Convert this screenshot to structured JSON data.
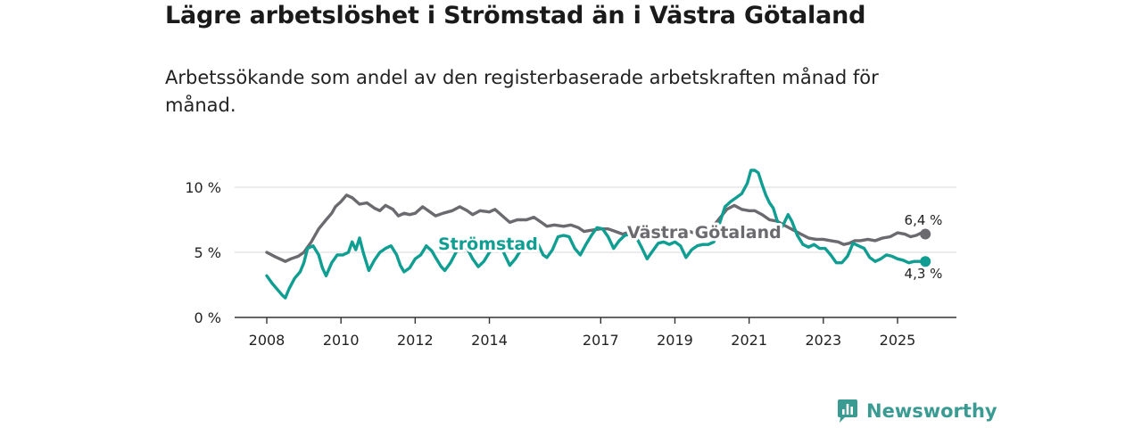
{
  "title": "Lägre arbetslöshet i Strömstad än i Västra Götaland",
  "subtitle": "Arbetssökande som andel av den registerbaserade arbetskraften månad för månad.",
  "brand": {
    "name": "Newsworthy"
  },
  "colors": {
    "stromstad": "#0f9e91",
    "vastra": "#6b6a6f",
    "grid": "#d9d9d9",
    "axis": "#333333"
  },
  "chart_data": {
    "type": "line",
    "title": "Lägre arbetslöshet i Strömstad än i Västra Götaland",
    "ylabel": "",
    "xlabel": "",
    "ylim": [
      0,
      10
    ],
    "xlim": [
      2008,
      2026.3
    ],
    "y_ticks": [
      0,
      5,
      10
    ],
    "y_tick_labels": [
      "0 %",
      "5 %",
      "10 %"
    ],
    "x_ticks": [
      2008,
      2010,
      2012,
      2014,
      2017,
      2019,
      2021,
      2023,
      2025
    ],
    "x_tick_labels": [
      "2008",
      "2010",
      "2012",
      "2014",
      "2017",
      "2019",
      "2021",
      "2023",
      "2025"
    ],
    "series": [
      {
        "name": "Västra Götaland",
        "label": "Västra Götaland",
        "end_label": "6,4 %",
        "points": [
          [
            2008.0,
            5.0
          ],
          [
            2008.2,
            4.7
          ],
          [
            2008.35,
            4.5
          ],
          [
            2008.5,
            4.3
          ],
          [
            2008.65,
            4.5
          ],
          [
            2008.85,
            4.7
          ],
          [
            2009.0,
            5.0
          ],
          [
            2009.2,
            5.8
          ],
          [
            2009.4,
            6.8
          ],
          [
            2009.6,
            7.5
          ],
          [
            2009.75,
            8.0
          ],
          [
            2009.85,
            8.5
          ],
          [
            2010.0,
            8.9
          ],
          [
            2010.15,
            9.4
          ],
          [
            2010.3,
            9.2
          ],
          [
            2010.5,
            8.7
          ],
          [
            2010.7,
            8.8
          ],
          [
            2010.9,
            8.4
          ],
          [
            2011.05,
            8.2
          ],
          [
            2011.2,
            8.6
          ],
          [
            2011.4,
            8.3
          ],
          [
            2011.55,
            7.8
          ],
          [
            2011.7,
            8.0
          ],
          [
            2011.85,
            7.9
          ],
          [
            2012.0,
            8.0
          ],
          [
            2012.2,
            8.5
          ],
          [
            2012.4,
            8.1
          ],
          [
            2012.55,
            7.8
          ],
          [
            2012.75,
            8.0
          ],
          [
            2013.0,
            8.2
          ],
          [
            2013.2,
            8.5
          ],
          [
            2013.4,
            8.2
          ],
          [
            2013.55,
            7.9
          ],
          [
            2013.75,
            8.2
          ],
          [
            2014.0,
            8.1
          ],
          [
            2014.15,
            8.3
          ],
          [
            2014.35,
            7.8
          ],
          [
            2014.55,
            7.3
          ],
          [
            2014.75,
            7.5
          ],
          [
            2015.0,
            7.5
          ],
          [
            2015.2,
            7.7
          ],
          [
            2015.4,
            7.3
          ],
          [
            2015.55,
            7.0
          ],
          [
            2015.75,
            7.1
          ],
          [
            2016.0,
            7.0
          ],
          [
            2016.2,
            7.1
          ],
          [
            2016.4,
            6.9
          ],
          [
            2016.55,
            6.6
          ],
          [
            2016.75,
            6.7
          ],
          [
            2017.0,
            6.8
          ],
          [
            2017.2,
            6.8
          ],
          [
            2017.4,
            6.6
          ],
          [
            2017.6,
            6.4
          ],
          [
            2017.8,
            6.6
          ],
          [
            2018.0,
            6.5
          ],
          [
            2018.2,
            6.6
          ],
          [
            2018.4,
            6.5
          ],
          [
            2018.6,
            6.3
          ],
          [
            2018.8,
            6.4
          ],
          [
            2019.0,
            6.5
          ],
          [
            2019.2,
            6.6
          ],
          [
            2019.4,
            6.6
          ],
          [
            2019.6,
            6.4
          ],
          [
            2019.8,
            6.6
          ],
          [
            2020.0,
            6.9
          ],
          [
            2020.2,
            7.6
          ],
          [
            2020.4,
            8.3
          ],
          [
            2020.6,
            8.6
          ],
          [
            2020.8,
            8.3
          ],
          [
            2021.0,
            8.2
          ],
          [
            2021.15,
            8.2
          ],
          [
            2021.35,
            7.9
          ],
          [
            2021.55,
            7.5
          ],
          [
            2021.75,
            7.4
          ],
          [
            2022.0,
            7.0
          ],
          [
            2022.2,
            6.7
          ],
          [
            2022.4,
            6.4
          ],
          [
            2022.6,
            6.1
          ],
          [
            2022.8,
            6.0
          ],
          [
            2023.0,
            6.0
          ],
          [
            2023.2,
            5.9
          ],
          [
            2023.4,
            5.8
          ],
          [
            2023.55,
            5.6
          ],
          [
            2023.7,
            5.7
          ],
          [
            2023.85,
            5.9
          ],
          [
            2024.0,
            5.9
          ],
          [
            2024.2,
            6.0
          ],
          [
            2024.4,
            5.9
          ],
          [
            2024.6,
            6.1
          ],
          [
            2024.8,
            6.2
          ],
          [
            2025.0,
            6.5
          ],
          [
            2025.2,
            6.4
          ],
          [
            2025.35,
            6.2
          ],
          [
            2025.5,
            6.3
          ],
          [
            2025.65,
            6.5
          ],
          [
            2025.75,
            6.4
          ]
        ]
      },
      {
        "name": "Strömstad",
        "label": "Strömstad",
        "end_label": "4,3 %",
        "points": [
          [
            2008.0,
            3.2
          ],
          [
            2008.15,
            2.6
          ],
          [
            2008.3,
            2.1
          ],
          [
            2008.42,
            1.7
          ],
          [
            2008.5,
            1.5
          ],
          [
            2008.6,
            2.2
          ],
          [
            2008.75,
            3.0
          ],
          [
            2008.9,
            3.5
          ],
          [
            2009.0,
            4.2
          ],
          [
            2009.1,
            5.3
          ],
          [
            2009.25,
            5.5
          ],
          [
            2009.4,
            4.8
          ],
          [
            2009.5,
            3.8
          ],
          [
            2009.6,
            3.2
          ],
          [
            2009.75,
            4.2
          ],
          [
            2009.9,
            4.8
          ],
          [
            2010.05,
            4.8
          ],
          [
            2010.2,
            5.0
          ],
          [
            2010.3,
            5.8
          ],
          [
            2010.4,
            5.2
          ],
          [
            2010.5,
            6.1
          ],
          [
            2010.6,
            5.0
          ],
          [
            2010.75,
            3.6
          ],
          [
            2010.9,
            4.4
          ],
          [
            2011.05,
            5.0
          ],
          [
            2011.2,
            5.3
          ],
          [
            2011.35,
            5.5
          ],
          [
            2011.5,
            4.8
          ],
          [
            2011.6,
            4.0
          ],
          [
            2011.7,
            3.5
          ],
          [
            2011.85,
            3.8
          ],
          [
            2012.0,
            4.5
          ],
          [
            2012.15,
            4.8
          ],
          [
            2012.3,
            5.5
          ],
          [
            2012.45,
            5.1
          ],
          [
            2012.55,
            4.6
          ],
          [
            2012.7,
            3.9
          ],
          [
            2012.8,
            3.6
          ],
          [
            2012.95,
            4.2
          ],
          [
            2013.1,
            5.0
          ],
          [
            2013.25,
            5.4
          ],
          [
            2013.4,
            5.3
          ],
          [
            2013.55,
            4.5
          ],
          [
            2013.7,
            3.9
          ],
          [
            2013.85,
            4.3
          ],
          [
            2014.0,
            5.0
          ],
          [
            2014.15,
            5.4
          ],
          [
            2014.3,
            5.5
          ],
          [
            2014.45,
            4.6
          ],
          [
            2014.55,
            4.0
          ],
          [
            2014.7,
            4.5
          ],
          [
            2014.85,
            5.2
          ],
          [
            2015.0,
            5.4
          ],
          [
            2015.15,
            5.6
          ],
          [
            2015.3,
            5.7
          ],
          [
            2015.45,
            4.8
          ],
          [
            2015.55,
            4.6
          ],
          [
            2015.7,
            5.2
          ],
          [
            2015.85,
            6.2
          ],
          [
            2016.0,
            6.3
          ],
          [
            2016.15,
            6.2
          ],
          [
            2016.3,
            5.3
          ],
          [
            2016.45,
            4.8
          ],
          [
            2016.6,
            5.6
          ],
          [
            2016.75,
            6.3
          ],
          [
            2016.9,
            6.9
          ],
          [
            2017.05,
            6.8
          ],
          [
            2017.2,
            6.2
          ],
          [
            2017.35,
            5.3
          ],
          [
            2017.5,
            5.9
          ],
          [
            2017.65,
            6.3
          ],
          [
            2017.8,
            6.4
          ],
          [
            2017.95,
            6.2
          ],
          [
            2018.1,
            5.4
          ],
          [
            2018.25,
            4.5
          ],
          [
            2018.4,
            5.1
          ],
          [
            2018.55,
            5.7
          ],
          [
            2018.7,
            5.8
          ],
          [
            2018.85,
            5.6
          ],
          [
            2019.0,
            5.8
          ],
          [
            2019.15,
            5.5
          ],
          [
            2019.3,
            4.6
          ],
          [
            2019.45,
            5.2
          ],
          [
            2019.6,
            5.5
          ],
          [
            2019.75,
            5.6
          ],
          [
            2019.9,
            5.6
          ],
          [
            2020.05,
            5.8
          ],
          [
            2020.2,
            7.2
          ],
          [
            2020.35,
            8.5
          ],
          [
            2020.5,
            8.9
          ],
          [
            2020.65,
            9.2
          ],
          [
            2020.8,
            9.5
          ],
          [
            2020.95,
            10.3
          ],
          [
            2021.05,
            11.3
          ],
          [
            2021.15,
            11.3
          ],
          [
            2021.25,
            11.1
          ],
          [
            2021.35,
            10.2
          ],
          [
            2021.45,
            9.4
          ],
          [
            2021.55,
            8.8
          ],
          [
            2021.65,
            8.4
          ],
          [
            2021.75,
            7.5
          ],
          [
            2021.85,
            6.8
          ],
          [
            2021.95,
            7.3
          ],
          [
            2022.05,
            7.9
          ],
          [
            2022.15,
            7.4
          ],
          [
            2022.3,
            6.3
          ],
          [
            2022.45,
            5.6
          ],
          [
            2022.6,
            5.4
          ],
          [
            2022.75,
            5.6
          ],
          [
            2022.9,
            5.3
          ],
          [
            2023.05,
            5.3
          ],
          [
            2023.2,
            4.8
          ],
          [
            2023.35,
            4.2
          ],
          [
            2023.5,
            4.2
          ],
          [
            2023.65,
            4.7
          ],
          [
            2023.8,
            5.7
          ],
          [
            2023.95,
            5.5
          ],
          [
            2024.1,
            5.3
          ],
          [
            2024.25,
            4.6
          ],
          [
            2024.4,
            4.3
          ],
          [
            2024.55,
            4.5
          ],
          [
            2024.7,
            4.8
          ],
          [
            2024.85,
            4.7
          ],
          [
            2025.0,
            4.5
          ],
          [
            2025.15,
            4.4
          ],
          [
            2025.3,
            4.2
          ],
          [
            2025.45,
            4.3
          ],
          [
            2025.6,
            4.3
          ],
          [
            2025.75,
            4.3
          ]
        ]
      }
    ]
  }
}
